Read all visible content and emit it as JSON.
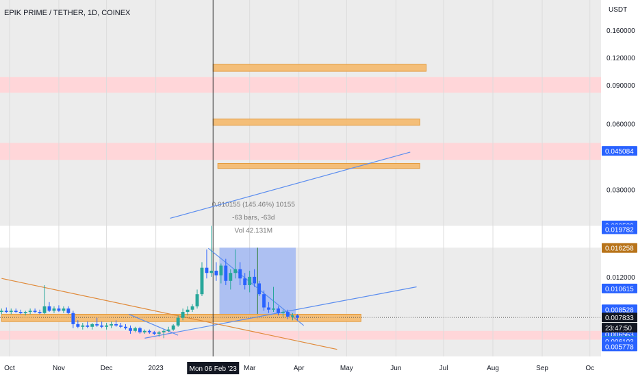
{
  "chart_data": {
    "type": "candlestick",
    "symbol_title": "EPIK PRIME / TETHER, 1D, COINEX",
    "currency": "USDT",
    "y_scale": "log",
    "y_range": [
      0.0052,
      0.22
    ],
    "x_range": [
      "2022-09-25",
      "2023-10-08"
    ],
    "x_ticks": [
      {
        "date": "2022-10-01",
        "label": "Oct"
      },
      {
        "date": "2022-11-01",
        "label": "Nov"
      },
      {
        "date": "2022-12-01",
        "label": "Dec"
      },
      {
        "date": "2023-01-01",
        "label": "2023"
      },
      {
        "date": "2023-03-01",
        "label": "Mar"
      },
      {
        "date": "2023-04-01",
        "label": "Apr"
      },
      {
        "date": "2023-05-01",
        "label": "May"
      },
      {
        "date": "2023-06-01",
        "label": "Jun"
      },
      {
        "date": "2023-07-01",
        "label": "Jul"
      },
      {
        "date": "2023-08-01",
        "label": "Aug"
      },
      {
        "date": "2023-09-01",
        "label": "Sep"
      },
      {
        "date": "2023-10-01",
        "label": "Oc"
      }
    ],
    "crosshair": {
      "date": "2023-02-06",
      "label": "Mon 06 Feb '23"
    },
    "y_ticks": [
      {
        "value": 0.16,
        "label": "0.160000"
      },
      {
        "value": 0.12,
        "label": "0.120000"
      },
      {
        "value": 0.09,
        "label": "0.090000"
      },
      {
        "value": 0.06,
        "label": "0.060000"
      },
      {
        "value": 0.03,
        "label": "0.030000"
      },
      {
        "value": 0.012,
        "label": "0.012000"
      }
    ],
    "price_tags": [
      {
        "value": 0.045084,
        "label": "0.045084",
        "color": "#2962ff"
      },
      {
        "value": 0.020589,
        "label": "0.020589",
        "color": "#2962ff"
      },
      {
        "value": 0.019782,
        "label": "0.019782",
        "color": "#2962ff"
      },
      {
        "value": 0.016258,
        "label": "0.016258",
        "color": "#b8741a"
      },
      {
        "value": 0.010615,
        "label": "0.010615",
        "color": "#2962ff"
      },
      {
        "value": 0.008528,
        "label": "0.008528",
        "color": "#2962ff"
      },
      {
        "value": 0.007833,
        "label": "0.007833",
        "color": "#131722"
      },
      {
        "value": 0.007023,
        "label": "0.007023",
        "color": "#26a69a"
      },
      {
        "value": 0.006914,
        "label": "0.006914",
        "color": "#2962ff"
      },
      {
        "value": 0.006563,
        "label": "0.006563",
        "color": "#2962ff"
      },
      {
        "value": 0.006135,
        "label": "0.006135",
        "color": "#26a69a"
      },
      {
        "value": 0.006103,
        "label": "0.006103",
        "color": "#2962ff"
      },
      {
        "value": 0.005778,
        "label": "0.005778",
        "color": "#2962ff"
      }
    ],
    "countdown": "23:47:50",
    "red_zones": [
      [
        0.083,
        0.098
      ],
      [
        0.041,
        0.049
      ],
      [
        0.0062,
        0.0068
      ]
    ],
    "white_zone": [
      0.0163,
      0.0205
    ],
    "orange_zones": [
      {
        "from": "2023-02-06",
        "to": "2023-06-20",
        "low": 0.104,
        "high": 0.112
      },
      {
        "from": "2023-02-06",
        "to": "2023-06-16",
        "low": 0.059,
        "high": 0.063
      },
      {
        "from": "2023-02-09",
        "to": "2023-06-16",
        "low": 0.0375,
        "high": 0.0395
      },
      {
        "from": "2022-09-26",
        "to": "2023-05-10",
        "low": 0.0075,
        "high": 0.0081
      }
    ],
    "trend_lines": [
      {
        "from": [
          "2023-01-10",
          0.0222
        ],
        "to": [
          "2023-06-10",
          0.0445
        ],
        "color": "#5b8def"
      },
      {
        "from": [
          "2022-12-25",
          0.0063
        ],
        "to": [
          "2023-06-14",
          0.0108
        ],
        "color": "#5b8def"
      },
      {
        "from": [
          "2022-12-15",
          0.0081
        ],
        "to": [
          "2023-01-15",
          0.0065
        ],
        "color": "#5b8def"
      },
      {
        "from": [
          "2023-02-03",
          0.0162
        ],
        "to": [
          "2023-04-04",
          0.0072
        ],
        "color": "#5b8def"
      },
      {
        "from": [
          "2022-09-26",
          0.0118
        ],
        "to": [
          "2023-04-25",
          0.0056
        ],
        "color": "#e08a3a"
      }
    ],
    "measure": {
      "from": "2023-02-10",
      "to": "2023-03-30",
      "low": 0.0077,
      "high": 0.0163,
      "lines": [
        "0.010155 (145.46%) 10155",
        "-63 bars, -63d",
        "Vol 42.131M"
      ]
    },
    "candles": [
      {
        "d": "2022-09-26",
        "o": 0.0083,
        "h": 0.0086,
        "l": 0.0081,
        "c": 0.0084
      },
      {
        "d": "2022-09-29",
        "o": 0.0084,
        "h": 0.0087,
        "l": 0.0082,
        "c": 0.0083
      },
      {
        "d": "2022-10-02",
        "o": 0.0083,
        "h": 0.0086,
        "l": 0.0081,
        "c": 0.0084
      },
      {
        "d": "2022-10-05",
        "o": 0.0084,
        "h": 0.0086,
        "l": 0.0082,
        "c": 0.0083
      },
      {
        "d": "2022-10-08",
        "o": 0.0083,
        "h": 0.0085,
        "l": 0.0081,
        "c": 0.0082
      },
      {
        "d": "2022-10-11",
        "o": 0.0082,
        "h": 0.0084,
        "l": 0.008,
        "c": 0.0083
      },
      {
        "d": "2022-10-14",
        "o": 0.0083,
        "h": 0.0086,
        "l": 0.0081,
        "c": 0.0084
      },
      {
        "d": "2022-10-17",
        "o": 0.0084,
        "h": 0.0086,
        "l": 0.0082,
        "c": 0.0083
      },
      {
        "d": "2022-10-20",
        "o": 0.0083,
        "h": 0.0085,
        "l": 0.0081,
        "c": 0.0082
      },
      {
        "d": "2022-10-23",
        "o": 0.0082,
        "h": 0.011,
        "l": 0.0081,
        "c": 0.0088
      },
      {
        "d": "2022-10-26",
        "o": 0.0088,
        "h": 0.0092,
        "l": 0.0083,
        "c": 0.0084
      },
      {
        "d": "2022-10-29",
        "o": 0.0084,
        "h": 0.0088,
        "l": 0.0082,
        "c": 0.0086
      },
      {
        "d": "2022-11-01",
        "o": 0.0086,
        "h": 0.0089,
        "l": 0.0083,
        "c": 0.0084
      },
      {
        "d": "2022-11-04",
        "o": 0.0084,
        "h": 0.0088,
        "l": 0.0082,
        "c": 0.0086
      },
      {
        "d": "2022-11-07",
        "o": 0.0086,
        "h": 0.0088,
        "l": 0.0081,
        "c": 0.0082
      },
      {
        "d": "2022-11-10",
        "o": 0.0082,
        "h": 0.0084,
        "l": 0.007,
        "c": 0.0073
      },
      {
        "d": "2022-11-13",
        "o": 0.0073,
        "h": 0.0076,
        "l": 0.007,
        "c": 0.0071
      },
      {
        "d": "2022-11-16",
        "o": 0.0071,
        "h": 0.0074,
        "l": 0.0069,
        "c": 0.0072
      },
      {
        "d": "2022-11-19",
        "o": 0.0072,
        "h": 0.0075,
        "l": 0.007,
        "c": 0.0071
      },
      {
        "d": "2022-11-22",
        "o": 0.0071,
        "h": 0.0074,
        "l": 0.0069,
        "c": 0.0073
      },
      {
        "d": "2022-11-25",
        "o": 0.0073,
        "h": 0.0078,
        "l": 0.0071,
        "c": 0.0072
      },
      {
        "d": "2022-11-28",
        "o": 0.0072,
        "h": 0.0075,
        "l": 0.007,
        "c": 0.0071
      },
      {
        "d": "2022-12-01",
        "o": 0.0071,
        "h": 0.0074,
        "l": 0.0069,
        "c": 0.0072
      },
      {
        "d": "2022-12-04",
        "o": 0.0072,
        "h": 0.0075,
        "l": 0.007,
        "c": 0.0073
      },
      {
        "d": "2022-12-07",
        "o": 0.0073,
        "h": 0.0076,
        "l": 0.0071,
        "c": 0.0072
      },
      {
        "d": "2022-12-10",
        "o": 0.0072,
        "h": 0.0074,
        "l": 0.007,
        "c": 0.0071
      },
      {
        "d": "2022-12-13",
        "o": 0.0071,
        "h": 0.0073,
        "l": 0.0069,
        "c": 0.007
      },
      {
        "d": "2022-12-16",
        "o": 0.007,
        "h": 0.0072,
        "l": 0.0066,
        "c": 0.0068
      },
      {
        "d": "2022-12-19",
        "o": 0.0068,
        "h": 0.0071,
        "l": 0.0067,
        "c": 0.007
      },
      {
        "d": "2022-12-22",
        "o": 0.007,
        "h": 0.0071,
        "l": 0.0066,
        "c": 0.0067
      },
      {
        "d": "2022-12-25",
        "o": 0.0067,
        "h": 0.0069,
        "l": 0.0066,
        "c": 0.0068
      },
      {
        "d": "2022-12-28",
        "o": 0.0068,
        "h": 0.0069,
        "l": 0.0066,
        "c": 0.0067
      },
      {
        "d": "2022-12-31",
        "o": 0.0067,
        "h": 0.0068,
        "l": 0.0065,
        "c": 0.0066
      },
      {
        "d": "2023-01-03",
        "o": 0.0066,
        "h": 0.0068,
        "l": 0.0064,
        "c": 0.0067
      },
      {
        "d": "2023-01-06",
        "o": 0.0067,
        "h": 0.0069,
        "l": 0.0063,
        "c": 0.0068
      },
      {
        "d": "2023-01-09",
        "o": 0.0068,
        "h": 0.0071,
        "l": 0.0067,
        "c": 0.0069
      },
      {
        "d": "2023-01-12",
        "o": 0.0069,
        "h": 0.0073,
        "l": 0.0068,
        "c": 0.0072
      },
      {
        "d": "2023-01-15",
        "o": 0.0072,
        "h": 0.008,
        "l": 0.0071,
        "c": 0.0078
      },
      {
        "d": "2023-01-18",
        "o": 0.0078,
        "h": 0.0086,
        "l": 0.0076,
        "c": 0.0083
      },
      {
        "d": "2023-01-21",
        "o": 0.0083,
        "h": 0.0088,
        "l": 0.008,
        "c": 0.0085
      },
      {
        "d": "2023-01-24",
        "o": 0.0085,
        "h": 0.009,
        "l": 0.0083,
        "c": 0.0088
      },
      {
        "d": "2023-01-27",
        "o": 0.0088,
        "h": 0.0105,
        "l": 0.0086,
        "c": 0.01
      },
      {
        "d": "2023-01-30",
        "o": 0.01,
        "h": 0.014,
        "l": 0.0098,
        "c": 0.0132
      },
      {
        "d": "2023-02-02",
        "o": 0.0132,
        "h": 0.016,
        "l": 0.0118,
        "c": 0.0125
      },
      {
        "d": "2023-02-05",
        "o": 0.0125,
        "h": 0.0205,
        "l": 0.012,
        "c": 0.0128
      },
      {
        "d": "2023-02-08",
        "o": 0.0128,
        "h": 0.014,
        "l": 0.0115,
        "c": 0.0122
      },
      {
        "d": "2023-02-11",
        "o": 0.0122,
        "h": 0.0138,
        "l": 0.0112,
        "c": 0.0135
      },
      {
        "d": "2023-02-14",
        "o": 0.0135,
        "h": 0.0145,
        "l": 0.011,
        "c": 0.0115
      },
      {
        "d": "2023-02-17",
        "o": 0.0115,
        "h": 0.013,
        "l": 0.0105,
        "c": 0.0125
      },
      {
        "d": "2023-02-20",
        "o": 0.0125,
        "h": 0.016,
        "l": 0.0118,
        "c": 0.013
      },
      {
        "d": "2023-02-23",
        "o": 0.013,
        "h": 0.014,
        "l": 0.011,
        "c": 0.0118
      },
      {
        "d": "2023-02-26",
        "o": 0.0118,
        "h": 0.0125,
        "l": 0.0105,
        "c": 0.011
      },
      {
        "d": "2023-03-01",
        "o": 0.011,
        "h": 0.0128,
        "l": 0.0102,
        "c": 0.012
      },
      {
        "d": "2023-03-04",
        "o": 0.012,
        "h": 0.013,
        "l": 0.0108,
        "c": 0.0112
      },
      {
        "d": "2023-03-07",
        "o": 0.0112,
        "h": 0.0115,
        "l": 0.0098,
        "c": 0.01
      },
      {
        "d": "2023-03-10",
        "o": 0.01,
        "h": 0.0104,
        "l": 0.0084,
        "c": 0.0087
      },
      {
        "d": "2023-03-13",
        "o": 0.0087,
        "h": 0.0092,
        "l": 0.0082,
        "c": 0.0085
      },
      {
        "d": "2023-03-16",
        "o": 0.0085,
        "h": 0.0108,
        "l": 0.0083,
        "c": 0.0086
      },
      {
        "d": "2023-03-19",
        "o": 0.0086,
        "h": 0.0088,
        "l": 0.008,
        "c": 0.0082
      },
      {
        "d": "2023-03-22",
        "o": 0.0082,
        "h": 0.0085,
        "l": 0.0079,
        "c": 0.0083
      },
      {
        "d": "2023-03-25",
        "o": 0.0083,
        "h": 0.0085,
        "l": 0.0077,
        "c": 0.0079
      },
      {
        "d": "2023-03-28",
        "o": 0.0079,
        "h": 0.0082,
        "l": 0.0076,
        "c": 0.008
      },
      {
        "d": "2023-03-31",
        "o": 0.008,
        "h": 0.0081,
        "l": 0.0076,
        "c": 0.0078
      }
    ]
  }
}
